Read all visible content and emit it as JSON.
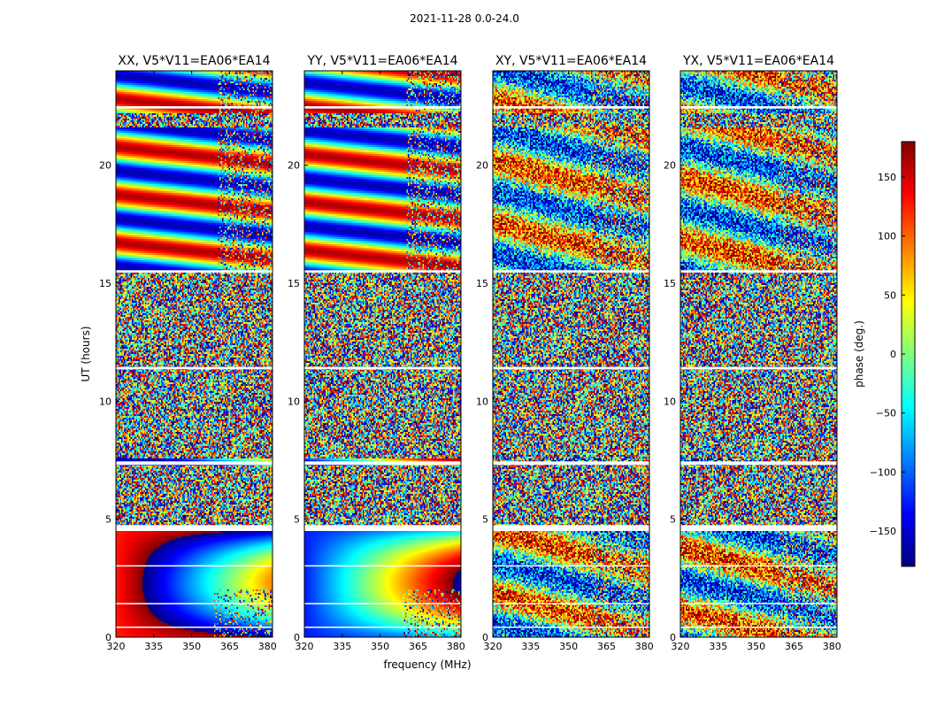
{
  "figure": {
    "suptitle": "2021-11-28 0.0-24.0",
    "xlabel": "frequency (MHz)",
    "ylabel": "UT (hours)"
  },
  "colorbar": {
    "label": "phase (deg.)",
    "range": [
      -180,
      180
    ],
    "ticks": [
      -150,
      -100,
      -50,
      0,
      50,
      100,
      150
    ],
    "tick_labels": [
      "−150",
      "−100",
      "−50",
      "0",
      "50",
      "100",
      "150"
    ],
    "colormap": "jet",
    "colors": [
      "#00007f",
      "#0000ff",
      "#007fff",
      "#00ffff",
      "#7fff7f",
      "#ffff00",
      "#ff7f00",
      "#ff0000",
      "#7f0000"
    ]
  },
  "chart_data": [
    {
      "type": "heatmap",
      "title": "XX, V5*V11=EA06*EA14",
      "xlabel": "frequency (MHz)",
      "ylabel": "UT (hours)",
      "xlim": [
        320,
        382
      ],
      "ylim": [
        0,
        24
      ],
      "xticks": [
        320,
        335,
        350,
        365,
        380
      ],
      "yticks": [
        0,
        5,
        10,
        15,
        20
      ],
      "value": "phase (deg.)",
      "pattern": "coherent"
    },
    {
      "type": "heatmap",
      "title": "YY, V5*V11=EA06*EA14",
      "xlabel": "frequency (MHz)",
      "ylabel": "UT (hours)",
      "xlim": [
        320,
        382
      ],
      "ylim": [
        0,
        24
      ],
      "xticks": [
        320,
        335,
        350,
        365,
        380
      ],
      "yticks": [
        0,
        5,
        10,
        15,
        20
      ],
      "value": "phase (deg.)",
      "pattern": "coherent"
    },
    {
      "type": "heatmap",
      "title": "XY, V5*V11=EA06*EA14",
      "xlabel": "frequency (MHz)",
      "ylabel": "UT (hours)",
      "xlim": [
        320,
        382
      ],
      "ylim": [
        0,
        24
      ],
      "xticks": [
        320,
        335,
        350,
        365,
        380
      ],
      "yticks": [
        0,
        5,
        10,
        15,
        20
      ],
      "value": "phase (deg.)",
      "pattern": "noisy"
    },
    {
      "type": "heatmap",
      "title": "YX, V5*V11=EA06*EA14",
      "xlabel": "frequency (MHz)",
      "ylabel": "UT (hours)",
      "xlim": [
        320,
        382
      ],
      "ylim": [
        0,
        24
      ],
      "xticks": [
        320,
        335,
        350,
        365,
        380
      ],
      "yticks": [
        0,
        5,
        10,
        15,
        20
      ],
      "value": "phase (deg.)",
      "pattern": "noisy"
    }
  ]
}
